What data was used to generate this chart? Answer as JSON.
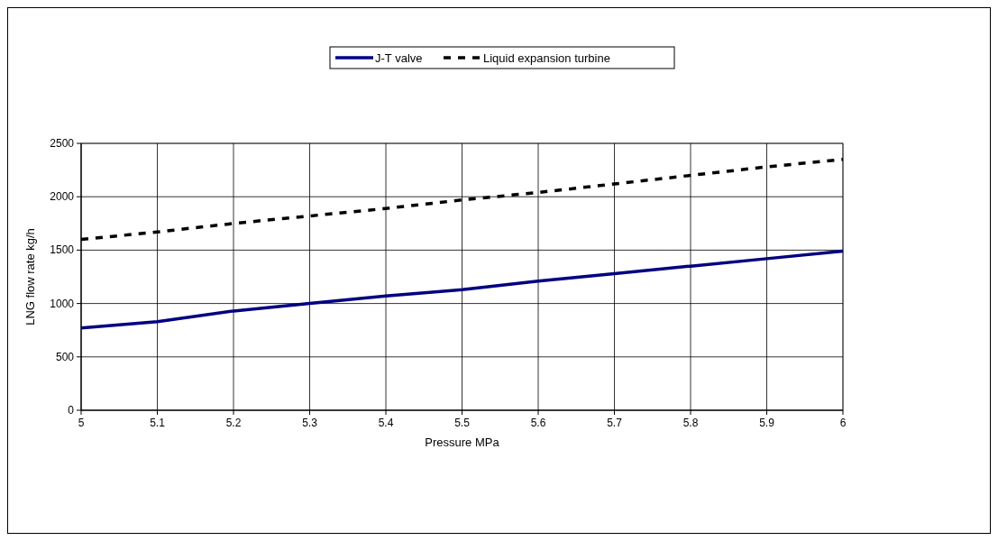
{
  "chart_data": {
    "type": "line",
    "xlabel": "Pressure MPa",
    "ylabel": "LNG flow rate kg/h",
    "x": [
      5,
      5.1,
      5.2,
      5.3,
      5.4,
      5.5,
      5.6,
      5.7,
      5.8,
      5.9,
      6
    ],
    "series": [
      {
        "name": "J-T valve",
        "color": "#000080",
        "line_style": "solid",
        "values": [
          770,
          830,
          930,
          1000,
          1070,
          1130,
          1210,
          1280,
          1350,
          1420,
          1490
        ]
      },
      {
        "name": "Liquid expansion turbine",
        "color": "#000000",
        "line_style": "dashed",
        "values": [
          1600,
          1670,
          1750,
          1820,
          1890,
          1970,
          2040,
          2120,
          2200,
          2280,
          2350
        ]
      }
    ],
    "xlim": [
      5,
      6
    ],
    "xticks": [
      5,
      5.1,
      5.2,
      5.3,
      5.4,
      5.5,
      5.6,
      5.7,
      5.8,
      5.9,
      6
    ],
    "ylim": [
      0,
      2500
    ],
    "yticks": [
      0,
      500,
      1000,
      1500,
      2000,
      2500
    ],
    "grid": true,
    "legend": "top"
  }
}
